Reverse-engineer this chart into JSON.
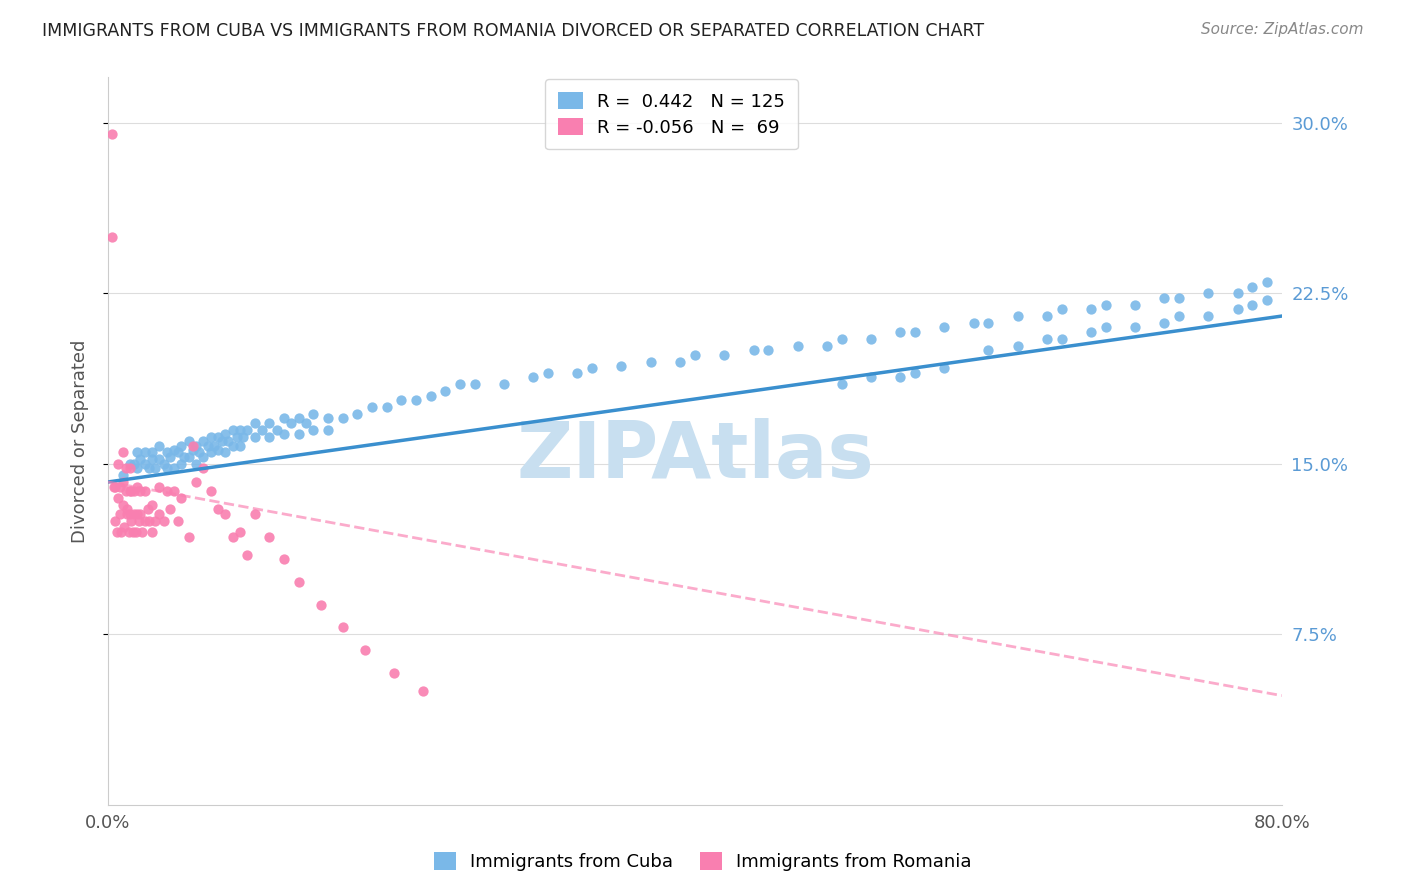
{
  "title": "IMMIGRANTS FROM CUBA VS IMMIGRANTS FROM ROMANIA DIVORCED OR SEPARATED CORRELATION CHART",
  "source": "Source: ZipAtlas.com",
  "ylabel": "Divorced or Separated",
  "xlim": [
    0.0,
    0.8
  ],
  "ylim": [
    0.0,
    0.32
  ],
  "ytick_positions": [
    0.075,
    0.15,
    0.225,
    0.3
  ],
  "ytick_labels": [
    "7.5%",
    "15.0%",
    "22.5%",
    "30.0%"
  ],
  "xtick_positions": [
    0.0,
    0.1,
    0.2,
    0.3,
    0.4,
    0.5,
    0.6,
    0.7,
    0.8
  ],
  "xtick_labels": [
    "0.0%",
    "",
    "",
    "",
    "",
    "",
    "",
    "",
    "80.0%"
  ],
  "cuba_color": "#7ab8e8",
  "romania_color": "#f97fb0",
  "cuba_line_color": "#3a8fce",
  "romania_line_color": "#f97fb0",
  "legend_R_cuba": "0.442",
  "legend_N_cuba": "125",
  "legend_R_romania": "-0.056",
  "legend_N_romania": "69",
  "watermark": "ZIPAtlas",
  "cuba_scatter_x": [
    0.01,
    0.015,
    0.018,
    0.02,
    0.02,
    0.022,
    0.025,
    0.025,
    0.028,
    0.03,
    0.03,
    0.032,
    0.035,
    0.035,
    0.038,
    0.04,
    0.04,
    0.042,
    0.045,
    0.045,
    0.048,
    0.05,
    0.05,
    0.052,
    0.055,
    0.055,
    0.058,
    0.06,
    0.06,
    0.062,
    0.065,
    0.065,
    0.068,
    0.07,
    0.07,
    0.072,
    0.075,
    0.075,
    0.078,
    0.08,
    0.08,
    0.082,
    0.085,
    0.085,
    0.088,
    0.09,
    0.09,
    0.092,
    0.095,
    0.1,
    0.1,
    0.105,
    0.11,
    0.11,
    0.115,
    0.12,
    0.12,
    0.125,
    0.13,
    0.13,
    0.135,
    0.14,
    0.14,
    0.15,
    0.15,
    0.16,
    0.17,
    0.18,
    0.19,
    0.2,
    0.21,
    0.22,
    0.23,
    0.24,
    0.25,
    0.27,
    0.29,
    0.3,
    0.32,
    0.33,
    0.35,
    0.37,
    0.39,
    0.4,
    0.42,
    0.44,
    0.45,
    0.47,
    0.49,
    0.5,
    0.52,
    0.54,
    0.55,
    0.57,
    0.59,
    0.6,
    0.62,
    0.64,
    0.65,
    0.67,
    0.68,
    0.7,
    0.72,
    0.73,
    0.75,
    0.77,
    0.78,
    0.79,
    0.6,
    0.62,
    0.64,
    0.65,
    0.67,
    0.68,
    0.7,
    0.72,
    0.73,
    0.75,
    0.77,
    0.78,
    0.79,
    0.5,
    0.52,
    0.54,
    0.55,
    0.57
  ],
  "cuba_scatter_y": [
    0.145,
    0.15,
    0.15,
    0.155,
    0.148,
    0.152,
    0.15,
    0.155,
    0.148,
    0.152,
    0.155,
    0.148,
    0.152,
    0.158,
    0.15,
    0.155,
    0.148,
    0.153,
    0.156,
    0.148,
    0.155,
    0.158,
    0.15,
    0.153,
    0.16,
    0.153,
    0.156,
    0.158,
    0.15,
    0.155,
    0.16,
    0.153,
    0.158,
    0.162,
    0.155,
    0.158,
    0.162,
    0.156,
    0.16,
    0.163,
    0.155,
    0.16,
    0.165,
    0.158,
    0.162,
    0.165,
    0.158,
    0.162,
    0.165,
    0.168,
    0.162,
    0.165,
    0.168,
    0.162,
    0.165,
    0.17,
    0.163,
    0.168,
    0.17,
    0.163,
    0.168,
    0.172,
    0.165,
    0.17,
    0.165,
    0.17,
    0.172,
    0.175,
    0.175,
    0.178,
    0.178,
    0.18,
    0.182,
    0.185,
    0.185,
    0.185,
    0.188,
    0.19,
    0.19,
    0.192,
    0.193,
    0.195,
    0.195,
    0.198,
    0.198,
    0.2,
    0.2,
    0.202,
    0.202,
    0.205,
    0.205,
    0.208,
    0.208,
    0.21,
    0.212,
    0.212,
    0.215,
    0.215,
    0.218,
    0.218,
    0.22,
    0.22,
    0.223,
    0.223,
    0.225,
    0.225,
    0.228,
    0.23,
    0.2,
    0.202,
    0.205,
    0.205,
    0.208,
    0.21,
    0.21,
    0.212,
    0.215,
    0.215,
    0.218,
    0.22,
    0.222,
    0.185,
    0.188,
    0.188,
    0.19,
    0.192
  ],
  "romania_scatter_x": [
    0.003,
    0.003,
    0.004,
    0.005,
    0.005,
    0.006,
    0.007,
    0.007,
    0.008,
    0.008,
    0.009,
    0.01,
    0.01,
    0.01,
    0.011,
    0.012,
    0.012,
    0.013,
    0.013,
    0.014,
    0.015,
    0.015,
    0.015,
    0.016,
    0.016,
    0.017,
    0.018,
    0.018,
    0.019,
    0.02,
    0.02,
    0.021,
    0.022,
    0.022,
    0.023,
    0.025,
    0.025,
    0.027,
    0.028,
    0.03,
    0.03,
    0.032,
    0.035,
    0.035,
    0.038,
    0.04,
    0.042,
    0.045,
    0.048,
    0.05,
    0.055,
    0.058,
    0.06,
    0.065,
    0.07,
    0.075,
    0.08,
    0.085,
    0.09,
    0.095,
    0.1,
    0.11,
    0.12,
    0.13,
    0.145,
    0.16,
    0.175,
    0.195,
    0.215
  ],
  "romania_scatter_y": [
    0.295,
    0.25,
    0.14,
    0.14,
    0.125,
    0.12,
    0.15,
    0.135,
    0.14,
    0.128,
    0.12,
    0.155,
    0.142,
    0.132,
    0.122,
    0.148,
    0.138,
    0.13,
    0.128,
    0.12,
    0.148,
    0.138,
    0.128,
    0.138,
    0.125,
    0.12,
    0.138,
    0.128,
    0.12,
    0.14,
    0.128,
    0.125,
    0.138,
    0.128,
    0.12,
    0.138,
    0.125,
    0.13,
    0.125,
    0.132,
    0.12,
    0.125,
    0.14,
    0.128,
    0.125,
    0.138,
    0.13,
    0.138,
    0.125,
    0.135,
    0.118,
    0.158,
    0.142,
    0.148,
    0.138,
    0.13,
    0.128,
    0.118,
    0.12,
    0.11,
    0.128,
    0.118,
    0.108,
    0.098,
    0.088,
    0.078,
    0.068,
    0.058,
    0.05
  ],
  "cuba_line_x": [
    0.0,
    0.8
  ],
  "cuba_line_y": [
    0.142,
    0.215
  ],
  "romania_line_x": [
    0.0,
    0.8
  ],
  "romania_line_y": [
    0.142,
    0.048
  ],
  "grid_color": "#dddddd",
  "title_color": "#222222",
  "right_ytick_color": "#5b9bd5",
  "watermark_color": "#c8dff0"
}
